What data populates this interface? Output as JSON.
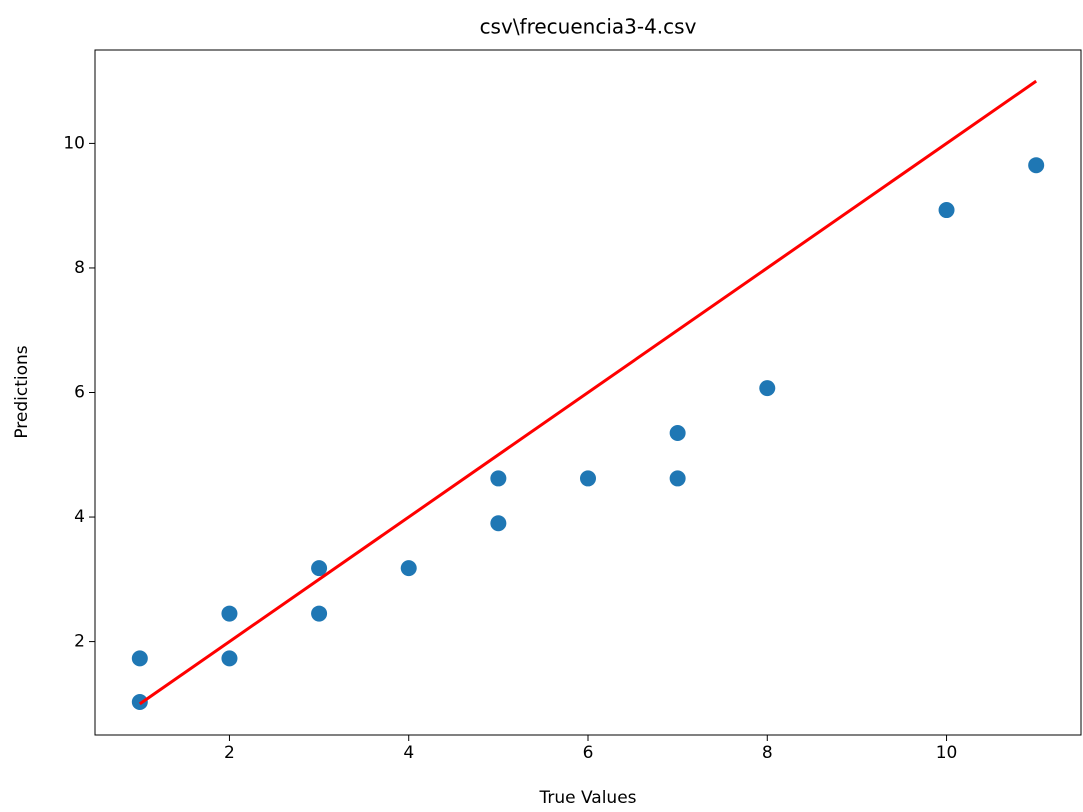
{
  "chart_data": {
    "type": "scatter",
    "title": "csv\\frecuencia3-4.csv",
    "xlabel": "True Values",
    "ylabel": "Predictions",
    "xlim": [
      0.5,
      11.5
    ],
    "ylim": [
      0.5,
      11.5
    ],
    "xticks": [
      2,
      4,
      6,
      8,
      10
    ],
    "yticks": [
      2,
      4,
      6,
      8,
      10
    ],
    "grid": false,
    "series": [
      {
        "type": "scatter",
        "color": "#1f77b4",
        "x": [
          1,
          1,
          2,
          2,
          3,
          3,
          4,
          5,
          5,
          6,
          7,
          7,
          8,
          10,
          11
        ],
        "y": [
          1.73,
          1.03,
          2.45,
          1.73,
          3.18,
          2.45,
          3.18,
          4.62,
          3.9,
          4.62,
          5.35,
          4.62,
          6.07,
          8.93,
          9.65
        ]
      },
      {
        "type": "line",
        "color": "#ff0000",
        "x": [
          1,
          11
        ],
        "y": [
          1,
          11
        ]
      }
    ]
  }
}
